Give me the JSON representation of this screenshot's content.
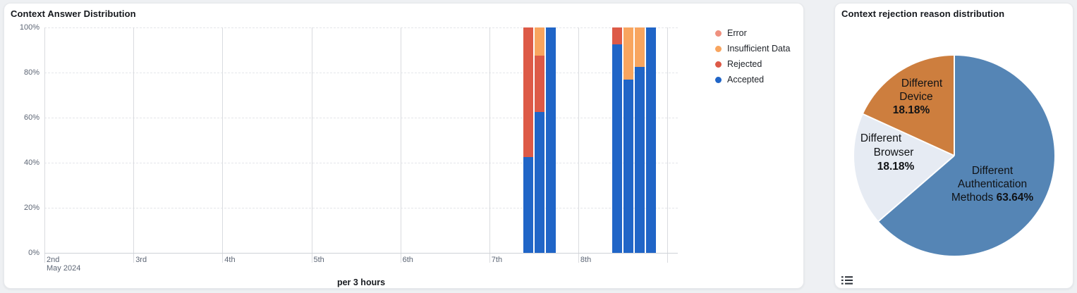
{
  "page": {
    "background": "#eef0f3"
  },
  "bar_card": {
    "title": "Context Answer Distribution",
    "x_axis_unit_label": "per 3 hours",
    "month_label": "May 2024"
  },
  "pie_card": {
    "title": "Context rejection reason distribution",
    "legend_toggle_icon": "list-icon"
  },
  "chart_data": [
    {
      "type": "bar",
      "title": "Context Answer Distribution",
      "stacked": true,
      "orientation": "vertical",
      "bar_interval": "per 3 hours",
      "y_axis": {
        "ticks": [
          "0%",
          "20%",
          "40%",
          "60%",
          "80%",
          "100%"
        ],
        "range": [
          0,
          100
        ],
        "grid": "dashed"
      },
      "x_axis": {
        "month": "May 2024",
        "day_ticks": [
          "2nd",
          "3rd",
          "4th",
          "5th",
          "6th",
          "7th",
          "8th"
        ],
        "unit": "per 3 hours"
      },
      "legend": {
        "position": "right",
        "entries": [
          {
            "label": "Error",
            "color": "#ef917f"
          },
          {
            "label": "Insufficient Data",
            "color": "#f8a55f"
          },
          {
            "label": "Rejected",
            "color": "#dd5a47"
          },
          {
            "label": "Accepted",
            "color": "#2065c7"
          }
        ]
      },
      "series_order_bottom_to_top": [
        "Accepted",
        "Rejected",
        "Insufficient Data",
        "Error"
      ],
      "bars": [
        {
          "date": "May 7",
          "hour": 9,
          "Accepted": 42.5,
          "Rejected": 57.5,
          "Insufficient Data": 0,
          "Error": 0
        },
        {
          "date": "May 7",
          "hour": 12,
          "Accepted": 62.5,
          "Rejected": 25,
          "Insufficient Data": 12.5,
          "Error": 0
        },
        {
          "date": "May 7",
          "hour": 15,
          "Accepted": 100,
          "Rejected": 0,
          "Insufficient Data": 0,
          "Error": 0
        },
        {
          "date": "May 8",
          "hour": 9,
          "Accepted": 92.5,
          "Rejected": 7.5,
          "Insufficient Data": 0,
          "Error": 0
        },
        {
          "date": "May 8",
          "hour": 12,
          "Accepted": 77,
          "Rejected": 0,
          "Insufficient Data": 23,
          "Error": 0
        },
        {
          "date": "May 8",
          "hour": 15,
          "Accepted": 82.5,
          "Rejected": 0,
          "Insufficient Data": 17.5,
          "Error": 0
        },
        {
          "date": "May 8",
          "hour": 18,
          "Accepted": 100,
          "Rejected": 0,
          "Insufficient Data": 0,
          "Error": 0
        }
      ]
    },
    {
      "type": "pie",
      "title": "Context rejection reason distribution",
      "start_angle": "top",
      "direction": "clockwise",
      "slices": [
        {
          "name": "Different Authentication Methods",
          "value": 63.64,
          "pct_label": "63.64%",
          "color": "#5585b5",
          "label_lines": [
            "Different",
            "Authentication"
          ],
          "pct_line_prefix": "Methods "
        },
        {
          "name": "Different Browser",
          "value": 18.18,
          "pct_label": "18.18%",
          "color": "#e6ebf3",
          "label_lines": [
            "Different",
            "Browser"
          ],
          "pct_line_prefix": ""
        },
        {
          "name": "Different Device",
          "value": 18.18,
          "pct_label": "18.18%",
          "color": "#cd7e3e",
          "label_lines": [
            "Different",
            "Device"
          ],
          "pct_line_prefix": ""
        }
      ]
    }
  ]
}
